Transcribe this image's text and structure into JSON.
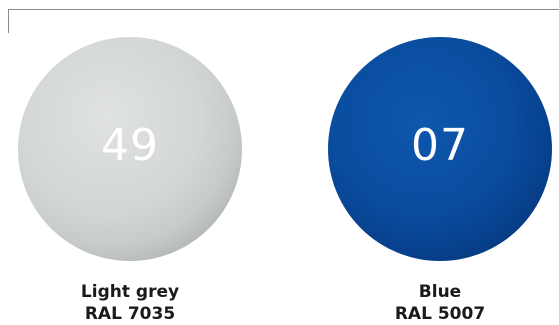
{
  "swatches": [
    {
      "number": "49",
      "name": "Light grey",
      "code": "RAL 7035",
      "color": "#d2d6d4"
    },
    {
      "number": "07",
      "name": "Blue",
      "code": "RAL 5007",
      "color": "#0a4d9f"
    }
  ]
}
